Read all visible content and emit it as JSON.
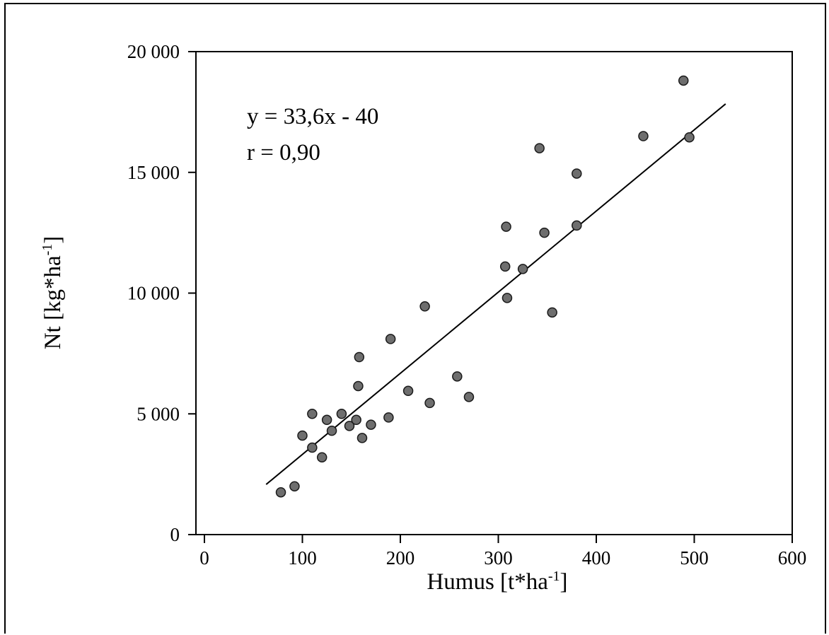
{
  "chart_data": {
    "type": "scatter",
    "title": "",
    "xlabel": "Humus [t*ha",
    "xlabel_sup": "-1",
    "xlabel_end": "]",
    "ylabel": "Nt [kg*ha",
    "ylabel_sup": "-1",
    "ylabel_end": "]",
    "xlim": [
      0,
      600
    ],
    "ylim": [
      0,
      20000
    ],
    "x_ticks": [
      0,
      100,
      200,
      300,
      400,
      500,
      600
    ],
    "y_ticks": [
      0,
      5000,
      10000,
      15000,
      20000
    ],
    "x_tick_labels": [
      "0",
      "100",
      "200",
      "300",
      "400",
      "500",
      "600"
    ],
    "y_tick_labels": [
      "0",
      "5 000",
      "10 000",
      "15 000",
      "20 000"
    ],
    "grid": false,
    "annotations": [
      "y = 33,6x - 40",
      "r = 0,90"
    ],
    "regression": {
      "slope": 33.6,
      "intercept": -40,
      "x_range": [
        63,
        532
      ]
    },
    "series": [
      {
        "marker_color": "#6e6e6e",
        "points": [
          [
            78,
            1750
          ],
          [
            92,
            2000
          ],
          [
            100,
            4100
          ],
          [
            110,
            3600
          ],
          [
            110,
            5000
          ],
          [
            120,
            3200
          ],
          [
            125,
            4750
          ],
          [
            130,
            4300
          ],
          [
            140,
            5000
          ],
          [
            148,
            4500
          ],
          [
            155,
            4750
          ],
          [
            157,
            6150
          ],
          [
            158,
            7350
          ],
          [
            161,
            4000
          ],
          [
            170,
            4550
          ],
          [
            188,
            4850
          ],
          [
            190,
            8100
          ],
          [
            208,
            5950
          ],
          [
            225,
            9450
          ],
          [
            230,
            5450
          ],
          [
            258,
            6550
          ],
          [
            270,
            5700
          ],
          [
            307,
            11100
          ],
          [
            308,
            12750
          ],
          [
            309,
            9800
          ],
          [
            325,
            11000
          ],
          [
            342,
            16000
          ],
          [
            347,
            12500
          ],
          [
            355,
            9200
          ],
          [
            380,
            14950
          ],
          [
            380,
            12800
          ],
          [
            448,
            16500
          ],
          [
            489,
            18800
          ],
          [
            495,
            16450
          ]
        ]
      }
    ]
  }
}
